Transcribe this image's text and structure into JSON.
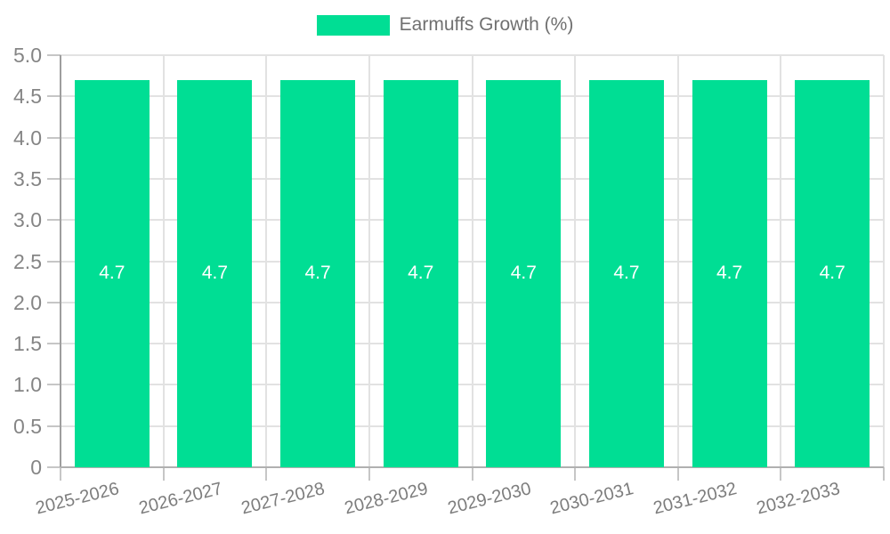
{
  "legend": {
    "items": [
      {
        "label": "Earmuffs Growth (%)",
        "color": "#00DE94"
      }
    ]
  },
  "chart_data": {
    "type": "bar",
    "title": "Earmuffs Growth (%)",
    "categories": [
      "2025-2026",
      "2026-2027",
      "2027-2028",
      "2028-2029",
      "2029-2030",
      "2030-2031",
      "2031-2032",
      "2032-2033"
    ],
    "series": [
      {
        "name": "Earmuffs Growth (%)",
        "color": "#00DE94",
        "values": [
          4.7,
          4.7,
          4.7,
          4.7,
          4.7,
          4.7,
          4.7,
          4.7
        ],
        "value_labels": [
          "4.7",
          "4.7",
          "4.7",
          "4.7",
          "4.7",
          "4.7",
          "4.7",
          "4.7"
        ]
      }
    ],
    "xlabel": "",
    "ylabel": "",
    "ylim": [
      0,
      5.0
    ],
    "yticks": {
      "values": [
        0,
        0.5,
        1,
        1.5,
        2,
        2.5,
        3,
        3.5,
        4,
        4.5,
        5
      ],
      "labels": [
        "0",
        "0.5",
        "1.0",
        "1.5",
        "2.0",
        "2.5",
        "3.0",
        "3.5",
        "4.0",
        "4.5",
        "5.0"
      ]
    },
    "grid": true,
    "legend_position": "top-center",
    "x_tick_rotation_deg": -14,
    "bar_label_color": "#ffffff",
    "colors": {
      "bar": "#00DE94",
      "axis": "#9e9e9e",
      "grid": "#e2e2e2",
      "tick": "#c6c6c6",
      "tick_label": "#858585",
      "legend_text": "#707070"
    }
  }
}
